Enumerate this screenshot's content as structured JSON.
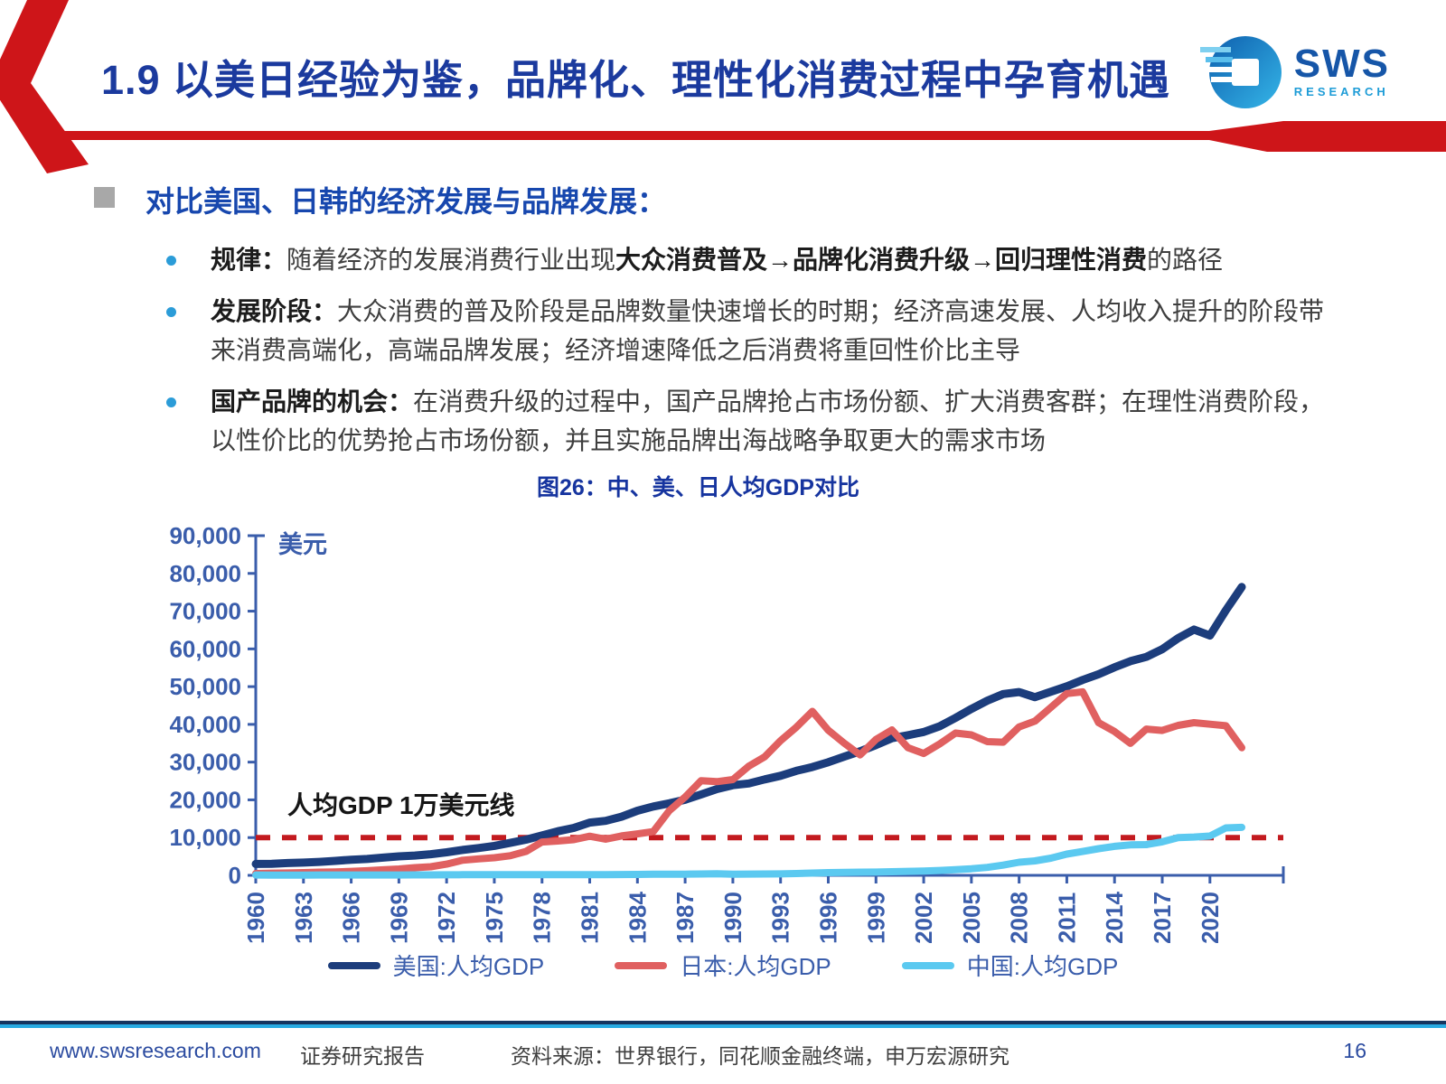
{
  "header": {
    "title": "1.9 以美日经验为鉴，品牌化、理性化消费过程中孕育机遇"
  },
  "logo": {
    "name": "SWS",
    "subname": "RESEARCH"
  },
  "content": {
    "heading": "对比美国、日韩的经济发展与品牌发展：",
    "bullets": [
      {
        "segments": [
          {
            "t": "规律：",
            "b": true
          },
          {
            "t": "随着经济的发展消费行业出现",
            "b": false
          },
          {
            "t": "大众消费普及→品牌化消费升级→回归理性消费",
            "b": true
          },
          {
            "t": "的路径",
            "b": false
          }
        ]
      },
      {
        "segments": [
          {
            "t": "发展阶段：",
            "b": true
          },
          {
            "t": "大众消费的普及阶段是品牌数量快速增长的时期；经济高速发展、人均收入提升的阶段带来消费高端化，高端品牌发展；经济增速降低之后消费将重回性价比主导",
            "b": false
          }
        ]
      },
      {
        "segments": [
          {
            "t": "国产品牌的机会：",
            "b": true
          },
          {
            "t": "在消费升级的过程中，国产品牌抢占市场份额、扩大消费客群；在理性消费阶段，以性价比的优势抢占市场份额，并且实施品牌出海战略争取更大的需求市场",
            "b": false
          }
        ]
      }
    ]
  },
  "chart_data": {
    "type": "line",
    "title": "图26：中、美、日人均GDP对比",
    "unit_label": "美元",
    "annotation": "人均GDP 1万美元线",
    "reference_line": 10000,
    "x_start": 1960,
    "x_end": 2022,
    "x_ticks": [
      1960,
      1963,
      1966,
      1969,
      1972,
      1975,
      1978,
      1981,
      1984,
      1987,
      1990,
      1993,
      1996,
      1999,
      2002,
      2005,
      2008,
      2011,
      2014,
      2017,
      2020
    ],
    "ylim": [
      0,
      90000
    ],
    "y_ticks": [
      0,
      10000,
      20000,
      30000,
      40000,
      50000,
      60000,
      70000,
      80000,
      90000
    ],
    "y_tick_labels": [
      "0",
      "10,000",
      "20,000",
      "30,000",
      "40,000",
      "50,000",
      "60,000",
      "70,000",
      "80,000",
      "90,000"
    ],
    "legend_position": "bottom",
    "grid": false,
    "series": [
      {
        "name": "美国:人均GDP",
        "color": "#1c3d7c",
        "width": 9,
        "values": [
          3007,
          3067,
          3244,
          3375,
          3574,
          3828,
          4146,
          4336,
          4696,
          5032,
          5234,
          5609,
          6094,
          6726,
          7226,
          7801,
          8592,
          9453,
          10565,
          11674,
          12575,
          13976,
          14434,
          15544,
          17121,
          18237,
          19071,
          20039,
          21417,
          22857,
          23889,
          24342,
          25419,
          26387,
          27695,
          28691,
          29968,
          31459,
          32854,
          34515,
          36330,
          37134,
          37998,
          39490,
          41725,
          44123,
          46302,
          48050,
          48570,
          47195,
          48651,
          50066,
          51784,
          53291,
          55124,
          56763,
          57867,
          59908,
          62823,
          65120,
          63528,
          70219,
          76399
        ]
      },
      {
        "name": "日本:人均GDP",
        "color": "#e06060",
        "width": 8,
        "values": [
          479,
          564,
          634,
          718,
          836,
          920,
          1058,
          1228,
          1451,
          1669,
          2040,
          2272,
          2967,
          3998,
          4354,
          4659,
          5197,
          6336,
          8821,
          9105,
          9465,
          10361,
          9578,
          10425,
          10984,
          11585,
          17112,
          20745,
          25059,
          24813,
          25371,
          28915,
          31414,
          35681,
          39268,
          43440,
          38436,
          35021,
          31902,
          36026,
          38532,
          33846,
          32289,
          34808,
          37688,
          37217,
          35433,
          35275,
          39339,
          40855,
          44508,
          48168,
          48603,
          40454,
          38109,
          34961,
          38762,
          38387,
          39727,
          40458,
          40041,
          39650,
          33815
        ]
      },
      {
        "name": "中国:人均GDP",
        "color": "#5bc9f0",
        "width": 8,
        "values": [
          90,
          76,
          71,
          74,
          85,
          98,
          104,
          97,
          91,
          100,
          113,
          119,
          132,
          157,
          160,
          178,
          165,
          185,
          156,
          184,
          195,
          197,
          203,
          225,
          251,
          294,
          282,
          301,
          370,
          411,
          318,
          333,
          366,
          377,
          473,
          610,
          709,
          782,
          829,
          873,
          959,
          1053,
          1149,
          1289,
          1509,
          1753,
          2099,
          2694,
          3468,
          3832,
          4550,
          5618,
          6317,
          7051,
          7679,
          8067,
          8148,
          8879,
          9977,
          10144,
          10409,
          12556,
          12720
        ]
      }
    ],
    "colors": {
      "axis": "#3a5dab",
      "reference": "#c31a1f"
    }
  },
  "colors": {
    "accent_red": "#ce1519",
    "title_blue": "#1b3a9e",
    "heading_blue": "#1747ae",
    "bullet_dot_blue": "#2b9cd8",
    "footer_navy": "#16355f",
    "footer_cyan": "#29abe2"
  },
  "footer": {
    "website": "www.swsresearch.com",
    "label": "证券研究报告",
    "source": "资料来源：世界银行，同花顺金融终端，申万宏源研究",
    "page": "16"
  }
}
